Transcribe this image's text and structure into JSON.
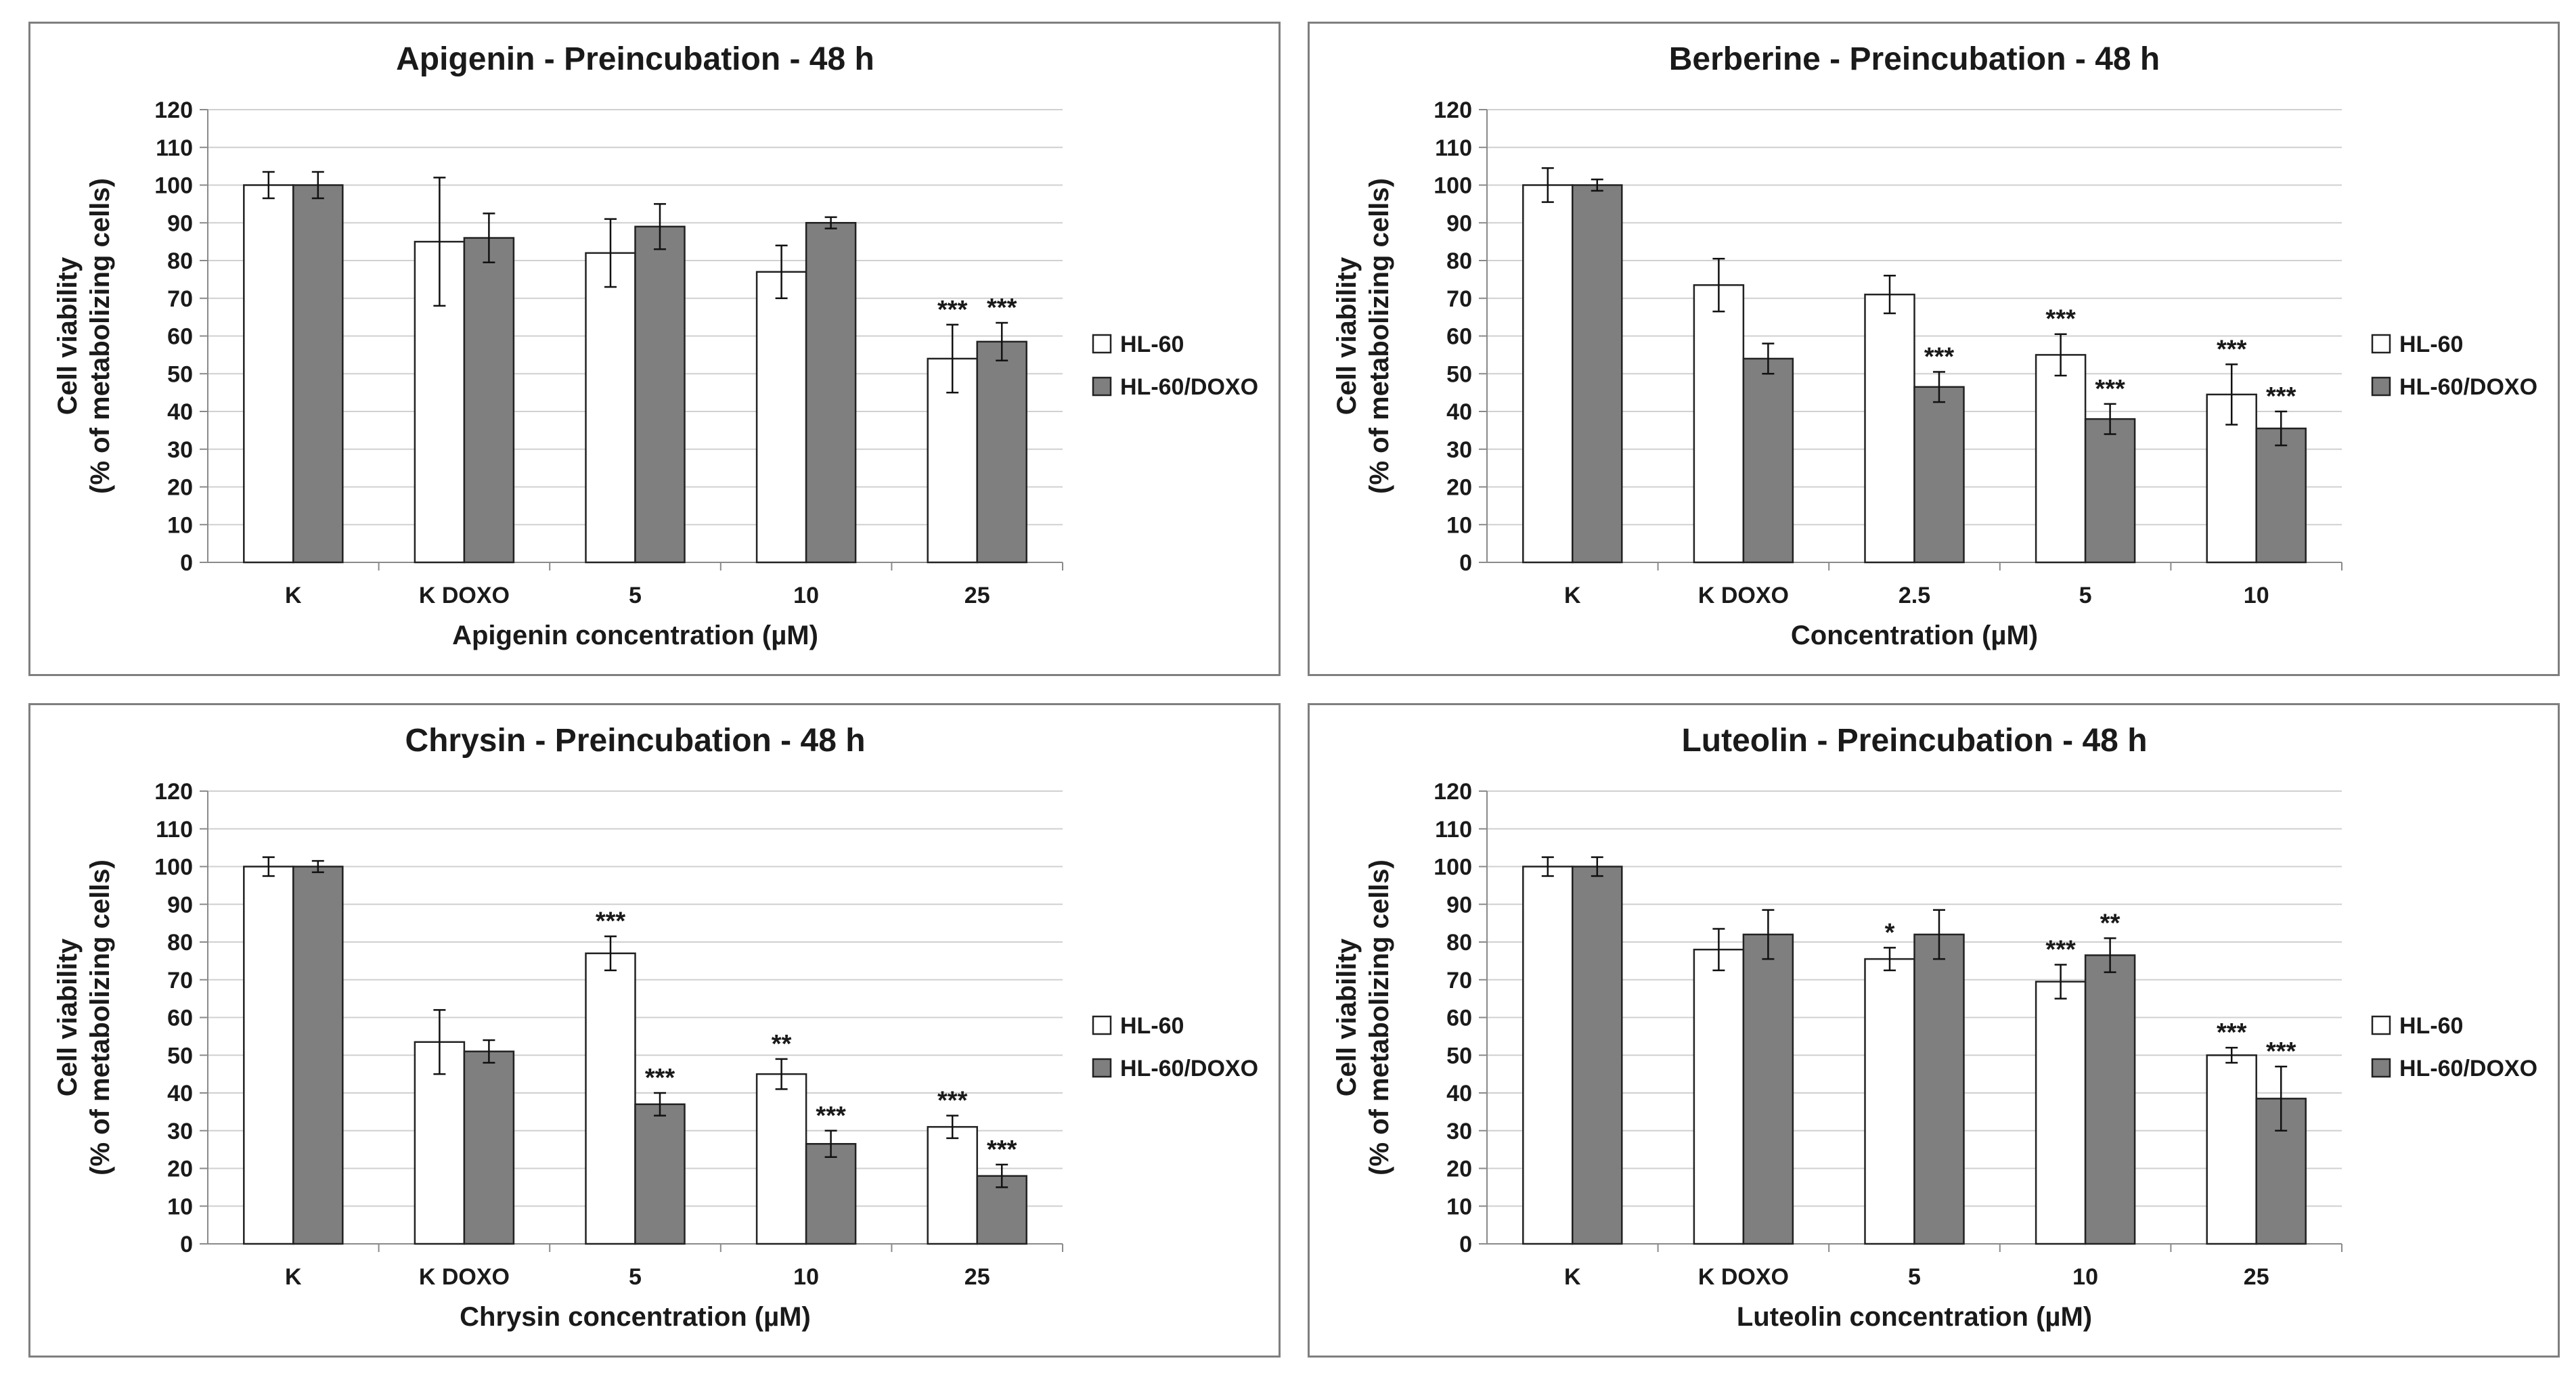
{
  "colors": {
    "hl60": "#ffffff",
    "hl60doxo": "#7f7f7f",
    "outline": "#222222",
    "grid": "#d0d0d0"
  },
  "legend": [
    "HL-60",
    "HL-60/DOXO"
  ],
  "chart_data": [
    {
      "type": "bar",
      "title": "Apigenin - Preincubation - 48 h",
      "xlabel": "Apigenin concentration (µM)",
      "ylabel": [
        "Cell viability",
        "(% of metabolizing cells)"
      ],
      "ylim": [
        0,
        120
      ],
      "yticks": [
        "0",
        "10",
        "20",
        "30",
        "40",
        "50",
        "60",
        "70",
        "80",
        "90",
        "100",
        "110",
        "120"
      ],
      "categories": [
        "K",
        "K DOXO",
        "5",
        "10",
        "25"
      ],
      "series": [
        {
          "name": "HL-60",
          "values": [
            100,
            85,
            82,
            77,
            54
          ],
          "errors": [
            3.5,
            17,
            9,
            7,
            9
          ],
          "sig": [
            "",
            "",
            "",
            "",
            "***"
          ]
        },
        {
          "name": "HL-60/DOXO",
          "values": [
            100,
            86,
            89,
            90,
            58.5
          ],
          "errors": [
            3.5,
            6.5,
            6,
            1.5,
            5
          ],
          "sig": [
            "",
            "",
            "",
            "",
            "***"
          ]
        }
      ]
    },
    {
      "type": "bar",
      "title": "Berberine - Preincubation - 48 h",
      "xlabel": "Concentration (µM)",
      "ylabel": [
        "Cell viability",
        "(% of metabolizing cells)"
      ],
      "ylim": [
        0,
        120
      ],
      "yticks": [
        "0",
        "10",
        "20",
        "30",
        "40",
        "50",
        "60",
        "70",
        "80",
        "90",
        "100",
        "110",
        "120"
      ],
      "categories": [
        "K",
        "K DOXO",
        "2.5",
        "5",
        "10"
      ],
      "series": [
        {
          "name": "HL-60",
          "values": [
            100,
            73.5,
            71,
            55,
            44.5
          ],
          "errors": [
            4.5,
            7,
            5,
            5.5,
            8
          ],
          "sig": [
            "",
            "",
            "",
            "***",
            "***"
          ]
        },
        {
          "name": "HL-60/DOXO",
          "values": [
            100,
            54,
            46.5,
            38,
            35.5
          ],
          "errors": [
            1.5,
            4,
            4,
            4,
            4.5
          ],
          "sig": [
            "",
            "",
            "***",
            "***",
            "***"
          ]
        }
      ]
    },
    {
      "type": "bar",
      "title": "Chrysin - Preincubation - 48 h",
      "xlabel": "Chrysin concentration (µM)",
      "ylabel": [
        "Cell viability",
        "(% of metabolizing cells)"
      ],
      "ylim": [
        0,
        120
      ],
      "yticks": [
        "0",
        "10",
        "20",
        "30",
        "40",
        "50",
        "60",
        "70",
        "80",
        "90",
        "100",
        "110",
        "120"
      ],
      "categories": [
        "K",
        "K DOXO",
        "5",
        "10",
        "25"
      ],
      "series": [
        {
          "name": "HL-60",
          "values": [
            100,
            53.5,
            77,
            45,
            31
          ],
          "errors": [
            2.5,
            8.5,
            4.5,
            4,
            3
          ],
          "sig": [
            "",
            "",
            "***",
            "**",
            "***"
          ]
        },
        {
          "name": "HL-60/DOXO",
          "values": [
            100,
            51,
            37,
            26.5,
            18
          ],
          "errors": [
            1.5,
            3,
            3,
            3.5,
            3
          ],
          "sig": [
            "",
            "",
            "***",
            "***",
            "***"
          ]
        }
      ]
    },
    {
      "type": "bar",
      "title": "Luteolin - Preincubation - 48 h",
      "xlabel": "Luteolin concentration (µM)",
      "ylabel": [
        "Cell viability",
        "(% of metabolizing cells)"
      ],
      "ylim": [
        0,
        120
      ],
      "yticks": [
        "0",
        "10",
        "20",
        "30",
        "40",
        "50",
        "60",
        "70",
        "80",
        "90",
        "100",
        "110",
        "120"
      ],
      "categories": [
        "K",
        "K DOXO",
        "5",
        "10",
        "25"
      ],
      "series": [
        {
          "name": "HL-60",
          "values": [
            100,
            78,
            75.5,
            69.5,
            50
          ],
          "errors": [
            2.5,
            5.5,
            3,
            4.5,
            2
          ],
          "sig": [
            "",
            "",
            "*",
            "***",
            "***"
          ]
        },
        {
          "name": "HL-60/DOXO",
          "values": [
            100,
            82,
            82,
            76.5,
            38.5
          ],
          "errors": [
            2.5,
            6.5,
            6.5,
            4.5,
            8.5
          ],
          "sig": [
            "",
            "",
            "",
            "**",
            "***"
          ]
        }
      ]
    }
  ]
}
